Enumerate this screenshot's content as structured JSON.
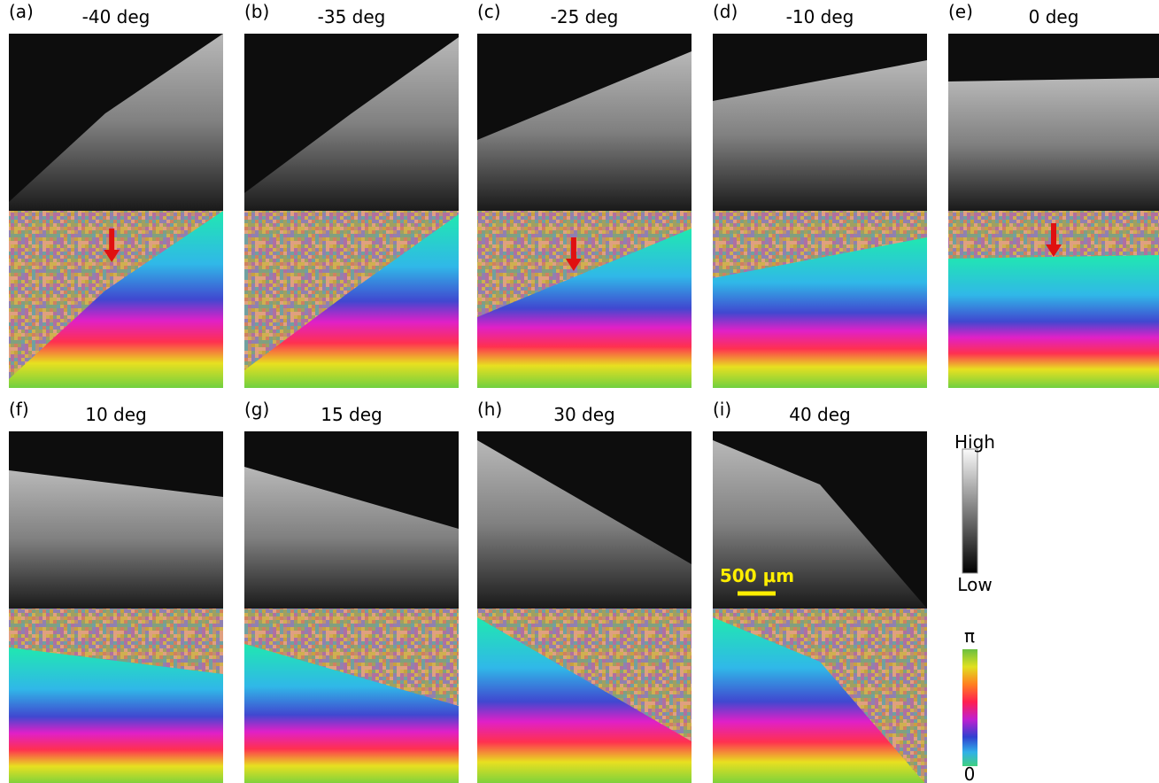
{
  "panels": [
    {
      "label": "(a)",
      "title": "-40 deg"
    },
    {
      "label": "(b)",
      "title": "-35 deg"
    },
    {
      "label": "(c)",
      "title": "-25 deg"
    },
    {
      "label": "(d)",
      "title": "-10 deg"
    },
    {
      "label": "(e)",
      "title": "0 deg"
    },
    {
      "label": "(f)",
      "title": "10 deg"
    },
    {
      "label": "(g)",
      "title": "15 deg"
    },
    {
      "label": "(h)",
      "title": "30 deg"
    },
    {
      "label": "(i)",
      "title": "40 deg"
    }
  ],
  "gray_colorbar": {
    "high": "High",
    "low": "Low"
  },
  "phase_colorbar": {
    "top": "π",
    "bottom": "0"
  },
  "scale_bar": "500 μm"
}
